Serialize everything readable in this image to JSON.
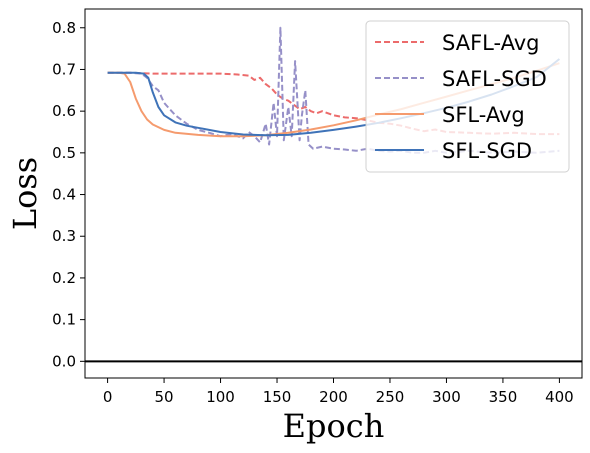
{
  "chart_data": {
    "type": "line",
    "title": "",
    "xlabel": "Epoch",
    "ylabel": "Loss",
    "xlim": [
      -20,
      420
    ],
    "ylim": [
      -0.04,
      0.845
    ],
    "xticks": [
      0,
      50,
      100,
      150,
      200,
      250,
      300,
      350,
      400
    ],
    "yticks": [
      0.0,
      0.1,
      0.2,
      0.3,
      0.4,
      0.5,
      0.6,
      0.7,
      0.8
    ],
    "ytick_labels": [
      "0.0",
      "0.1",
      "0.2",
      "0.3",
      "0.4",
      "0.5",
      "0.6",
      "0.7",
      "0.8"
    ],
    "grid": false,
    "legend_position": "top-right",
    "reference_line": {
      "y": 0.0,
      "color": "#000000"
    },
    "series": [
      {
        "name": "SAFL-Avg",
        "color": "#ec6b6b",
        "dash": "dashed",
        "x": [
          0,
          20,
          40,
          60,
          80,
          100,
          115,
          125,
          130,
          135,
          140,
          145,
          150,
          155,
          160,
          165,
          170,
          175,
          180,
          185,
          190,
          200,
          210,
          220,
          230,
          240,
          250,
          260,
          270,
          280,
          290,
          300,
          320,
          340,
          360,
          380,
          400
        ],
        "y": [
          0.692,
          0.692,
          0.69,
          0.69,
          0.69,
          0.69,
          0.688,
          0.685,
          0.675,
          0.68,
          0.665,
          0.655,
          0.64,
          0.63,
          0.625,
          0.615,
          0.605,
          0.61,
          0.6,
          0.595,
          0.6,
          0.59,
          0.585,
          0.583,
          0.578,
          0.572,
          0.57,
          0.565,
          0.558,
          0.552,
          0.556,
          0.55,
          0.548,
          0.546,
          0.548,
          0.545,
          0.545
        ]
      },
      {
        "name": "SAFL-SGD",
        "color": "#9690c8",
        "dash": "dashed",
        "x": [
          0,
          20,
          30,
          35,
          40,
          45,
          50,
          55,
          60,
          65,
          70,
          80,
          90,
          100,
          110,
          120,
          125,
          130,
          135,
          140,
          143,
          147,
          150,
          153,
          156,
          160,
          163,
          166,
          170,
          172,
          175,
          178,
          182,
          190,
          200,
          210,
          220,
          230,
          240,
          250,
          260,
          270,
          280,
          290,
          300,
          320,
          340,
          360,
          380,
          400
        ],
        "y": [
          0.692,
          0.692,
          0.69,
          0.68,
          0.66,
          0.65,
          0.62,
          0.605,
          0.59,
          0.58,
          0.57,
          0.555,
          0.548,
          0.54,
          0.545,
          0.535,
          0.55,
          0.54,
          0.525,
          0.57,
          0.52,
          0.62,
          0.54,
          0.8,
          0.53,
          0.61,
          0.54,
          0.72,
          0.53,
          0.59,
          0.65,
          0.52,
          0.51,
          0.515,
          0.51,
          0.508,
          0.505,
          0.51,
          0.505,
          0.503,
          0.505,
          0.5,
          0.5,
          0.505,
          0.5,
          0.505,
          0.5,
          0.503,
          0.5,
          0.505
        ]
      },
      {
        "name": "SFL-Avg",
        "color": "#f59b6e",
        "dash": "solid",
        "x": [
          0,
          10,
          15,
          20,
          25,
          30,
          35,
          40,
          50,
          60,
          80,
          100,
          120,
          140,
          160,
          180,
          200,
          220,
          240,
          260,
          280,
          300,
          320,
          340,
          360,
          380,
          400
        ],
        "y": [
          0.692,
          0.692,
          0.69,
          0.67,
          0.63,
          0.6,
          0.58,
          0.568,
          0.555,
          0.548,
          0.543,
          0.54,
          0.54,
          0.542,
          0.548,
          0.556,
          0.566,
          0.578,
          0.592,
          0.605,
          0.62,
          0.635,
          0.65,
          0.665,
          0.68,
          0.697,
          0.715
        ]
      },
      {
        "name": "SFL-SGD",
        "color": "#3f73b8",
        "dash": "solid",
        "x": [
          0,
          25,
          32,
          36,
          40,
          45,
          50,
          60,
          70,
          80,
          100,
          120,
          140,
          160,
          180,
          200,
          220,
          240,
          260,
          280,
          300,
          320,
          340,
          360,
          380,
          400
        ],
        "y": [
          0.692,
          0.692,
          0.69,
          0.68,
          0.645,
          0.61,
          0.59,
          0.573,
          0.565,
          0.56,
          0.55,
          0.544,
          0.542,
          0.543,
          0.548,
          0.555,
          0.563,
          0.572,
          0.583,
          0.595,
          0.608,
          0.623,
          0.64,
          0.66,
          0.682,
          0.725
        ]
      }
    ]
  }
}
